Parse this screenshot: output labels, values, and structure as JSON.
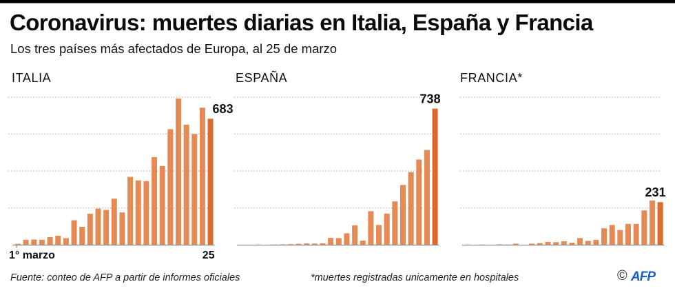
{
  "header": {
    "title": "Coronavirus: muertes diarias en Italia, España y Francia",
    "subtitle": "Los tres países más afectados de Europa, al 25 de marzo"
  },
  "footer": {
    "source": "Fuente: conteo de AFP a partir de informes oficiales",
    "note": "*muertes registradas unicamente en hospitales",
    "copyright_symbol": "©",
    "logo_text": "AFP"
  },
  "colors": {
    "bar": "#e68a55",
    "bar_last": "#dd6a2c",
    "grid": "#b8b8b8",
    "axis": "#888888",
    "logo": "#1a5dc8"
  },
  "chart_data": [
    {
      "type": "bar",
      "title": "ITALIA",
      "x_start_label": "1° marzo",
      "x_end_label": "25",
      "categories": [
        "1",
        "2",
        "3",
        "4",
        "5",
        "6",
        "7",
        "8",
        "9",
        "10",
        "11",
        "12",
        "13",
        "14",
        "15",
        "16",
        "17",
        "18",
        "19",
        "20",
        "21",
        "22",
        "23",
        "24",
        "25"
      ],
      "values": [
        5,
        27,
        28,
        27,
        41,
        49,
        36,
        133,
        97,
        168,
        196,
        189,
        250,
        175,
        368,
        349,
        345,
        475,
        427,
        627,
        793,
        651,
        601,
        743,
        683
      ],
      "last_value_label": "683",
      "ylim": [
        0,
        800
      ],
      "gridlines": [
        200,
        400,
        600,
        800
      ],
      "grid": true
    },
    {
      "type": "bar",
      "title": "ESPAÑA",
      "categories": [
        "1",
        "2",
        "3",
        "4",
        "5",
        "6",
        "7",
        "8",
        "9",
        "10",
        "11",
        "12",
        "13",
        "14",
        "15",
        "16",
        "17",
        "18",
        "19",
        "20",
        "21",
        "22",
        "23",
        "24",
        "25"
      ],
      "values": [
        0,
        0,
        1,
        0,
        1,
        2,
        3,
        5,
        7,
        6,
        8,
        37,
        36,
        62,
        105,
        22,
        182,
        107,
        169,
        235,
        324,
        394,
        462,
        514,
        738
      ],
      "last_value_label": "738",
      "ylim": [
        0,
        800
      ],
      "gridlines": [
        200,
        400,
        600,
        800
      ],
      "grid": true
    },
    {
      "type": "bar",
      "title": "FRANCIA*",
      "categories": [
        "1",
        "2",
        "3",
        "4",
        "5",
        "6",
        "7",
        "8",
        "9",
        "10",
        "11",
        "12",
        "13",
        "14",
        "15",
        "16",
        "17",
        "18",
        "19",
        "20",
        "21",
        "22",
        "23",
        "24",
        "25"
      ],
      "values": [
        1,
        0,
        1,
        0,
        2,
        1,
        6,
        0,
        6,
        9,
        15,
        14,
        19,
        11,
        36,
        21,
        26,
        89,
        107,
        80,
        113,
        113,
        186,
        240,
        231
      ],
      "last_value_label": "231",
      "ylim": [
        0,
        800
      ],
      "gridlines": [
        200,
        400,
        600,
        800
      ],
      "grid": true
    }
  ]
}
